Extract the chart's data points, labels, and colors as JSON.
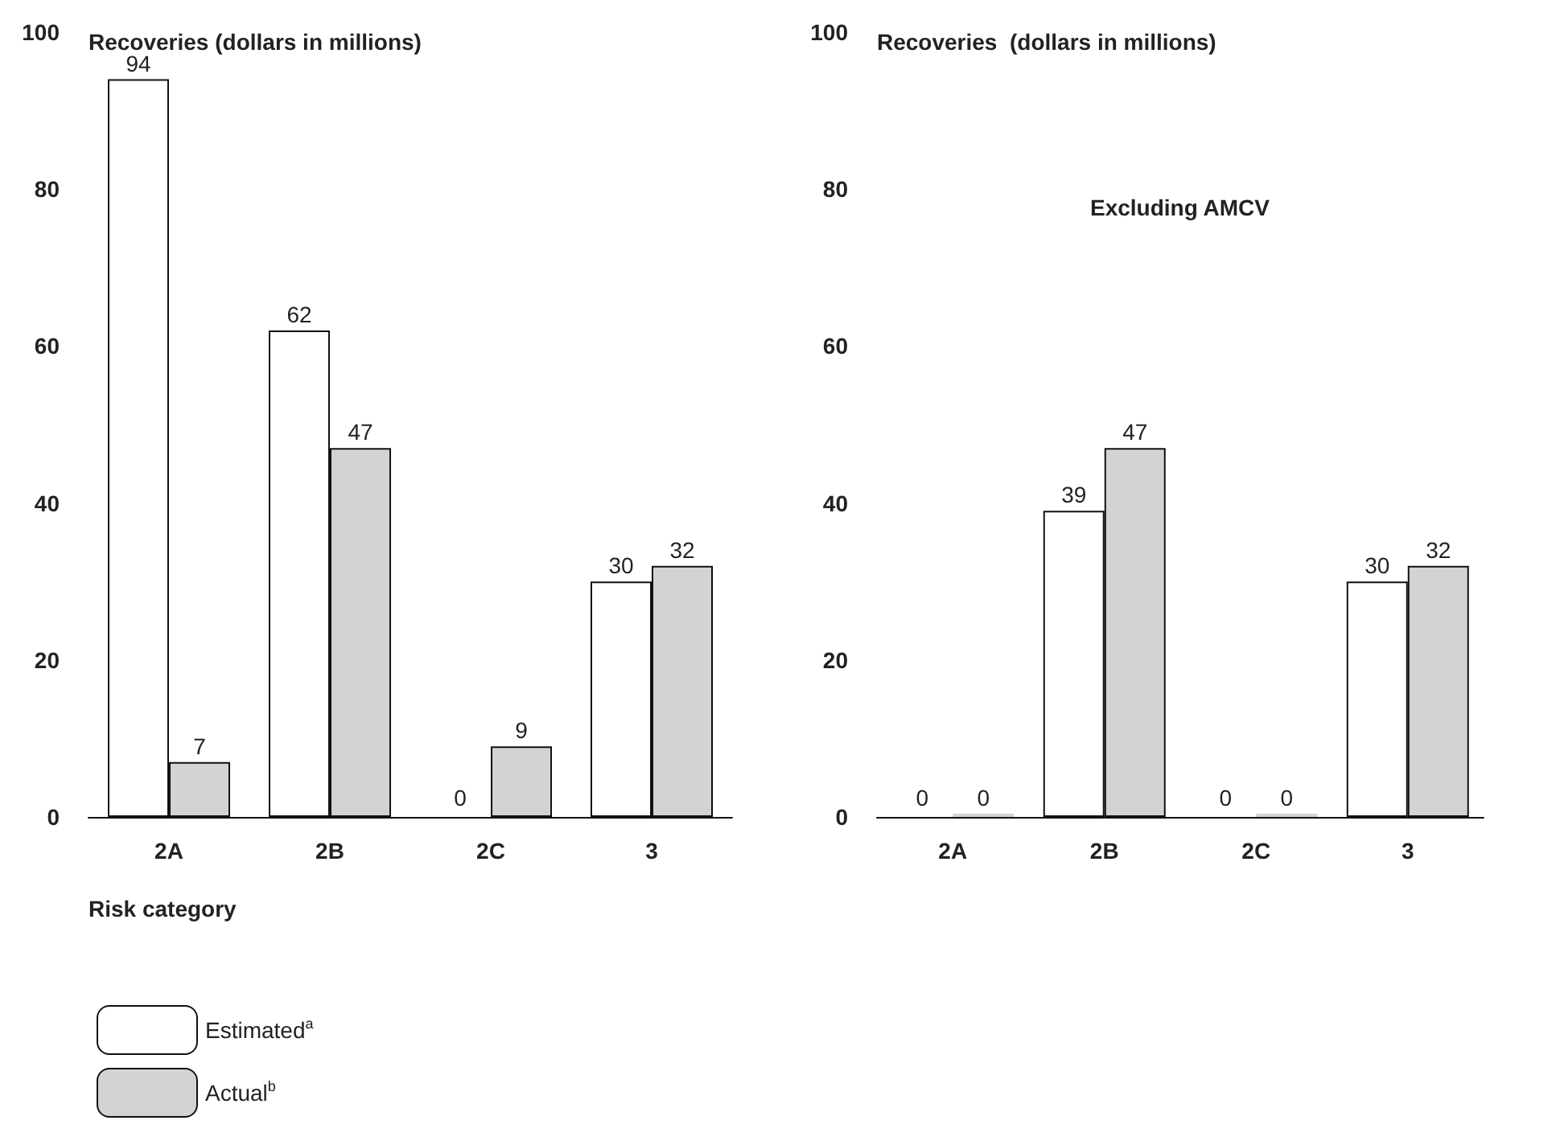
{
  "chart_data": [
    {
      "type": "bar",
      "ylabel": "Recoveries (dollars in millions)",
      "xlabel": "Risk category",
      "categories": [
        "2A",
        "2B",
        "2C",
        "3"
      ],
      "series": [
        {
          "name": "Estimated$^{a}$",
          "color": "#ffffff",
          "values": [
            94,
            62,
            0,
            30
          ]
        },
        {
          "name": "Actual$^{b}$",
          "color": "#d1d3d4",
          "values": [
            7,
            47,
            9,
            32
          ]
        }
      ],
      "ylim": [
        0,
        100
      ],
      "yticks": [
        0,
        20,
        40,
        60,
        80,
        100
      ],
      "data_labels": true,
      "legend": "bottom left"
    },
    {
      "type": "bar",
      "ylabel": "Recoveries  (dollars in millions)",
      "annotations": [
        "Excluding AMCV"
      ],
      "categories": [
        "2A",
        "2B",
        "2C",
        "3"
      ],
      "series": [
        {
          "color": "#ffffff",
          "values": [
            0,
            39,
            0,
            30
          ]
        },
        {
          "color": "#d1d3d4",
          "values": [
            0,
            47,
            0,
            32
          ]
        }
      ],
      "ylim": [
        0,
        100
      ],
      "yticks": [
        0,
        20,
        40,
        60,
        80,
        100
      ],
      "data_labels": true
    }
  ]
}
